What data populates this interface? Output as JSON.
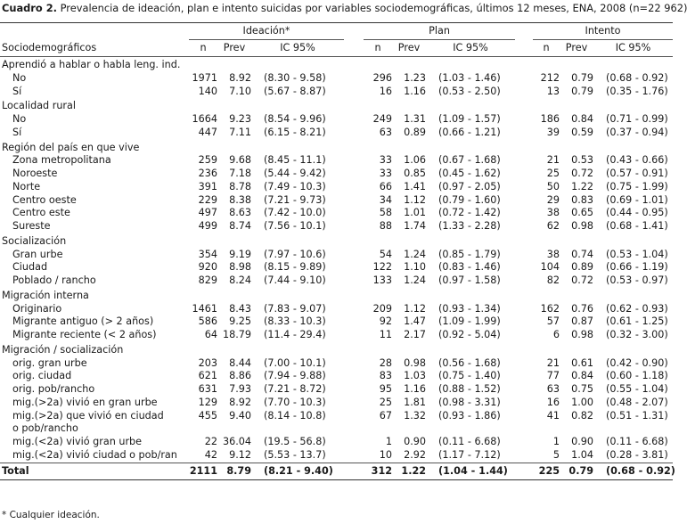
{
  "caption": {
    "label": "Cuadro 2.",
    "text": "Prevalencia de ideación, plan e intento suicidas por variables sociodemográficas, últimos 12 meses, ENA, 2008 (n=22 962)"
  },
  "header": {
    "groups": [
      "Ideación*",
      "Plan",
      "Intento"
    ],
    "first_column": "Sociodemográficos",
    "columns": [
      "n",
      "Prev",
      "IC 95%"
    ]
  },
  "sections": [
    {
      "title": "Aprendió a hablar o habla leng. ind.",
      "rows": [
        {
          "label": "No",
          "ideacion": [
            "1971",
            "8.92",
            "(8.30 - 9.58)"
          ],
          "plan": [
            "296",
            "1.23",
            "(1.03 - 1.46)"
          ],
          "intento": [
            "212",
            "0.79",
            "(0.68 - 0.92)"
          ]
        },
        {
          "label": "Sí",
          "ideacion": [
            "140",
            "7.10",
            "(5.67 - 8.87)"
          ],
          "plan": [
            "16",
            "1.16",
            "(0.53 - 2.50)"
          ],
          "intento": [
            "13",
            "0.79",
            "(0.35 - 1.76)"
          ]
        }
      ]
    },
    {
      "title": "Localidad rural",
      "rows": [
        {
          "label": "No",
          "ideacion": [
            "1664",
            "9.23",
            "(8.54 - 9.96)"
          ],
          "plan": [
            "249",
            "1.31",
            "(1.09 - 1.57)"
          ],
          "intento": [
            "186",
            "0.84",
            "(0.71 - 0.99)"
          ]
        },
        {
          "label": "Sí",
          "ideacion": [
            "447",
            "7.11",
            "(6.15 - 8.21)"
          ],
          "plan": [
            "63",
            "0.89",
            "(0.66 - 1.21)"
          ],
          "intento": [
            "39",
            "0.59",
            "(0.37 - 0.94)"
          ]
        }
      ]
    },
    {
      "title": "Región del país en que vive",
      "rows": [
        {
          "label": "Zona metropolitana",
          "ideacion": [
            "259",
            "9.68",
            "(8.45 - 11.1)"
          ],
          "plan": [
            "33",
            "1.06",
            "(0.67 - 1.68)"
          ],
          "intento": [
            "21",
            "0.53",
            "(0.43 - 0.66)"
          ]
        },
        {
          "label": "Noroeste",
          "ideacion": [
            "236",
            "7.18",
            "(5.44 - 9.42)"
          ],
          "plan": [
            "33",
            "0.85",
            "(0.45 - 1.62)"
          ],
          "intento": [
            "25",
            "0.72",
            "(0.57 - 0.91)"
          ]
        },
        {
          "label": "Norte",
          "ideacion": [
            "391",
            "8.78",
            "(7.49 - 10.3)"
          ],
          "plan": [
            "66",
            "1.41",
            "(0.97 - 2.05)"
          ],
          "intento": [
            "50",
            "1.22",
            "(0.75 - 1.99)"
          ]
        },
        {
          "label": "Centro oeste",
          "ideacion": [
            "229",
            "8.38",
            "(7.21 - 9.73)"
          ],
          "plan": [
            "34",
            "1.12",
            "(0.79 - 1.60)"
          ],
          "intento": [
            "29",
            "0.83",
            "(0.69 - 1.01)"
          ]
        },
        {
          "label": "Centro este",
          "ideacion": [
            "497",
            "8.63",
            "(7.42 - 10.0)"
          ],
          "plan": [
            "58",
            "1.01",
            "(0.72 - 1.42)"
          ],
          "intento": [
            "38",
            "0.65",
            "(0.44 - 0.95)"
          ]
        },
        {
          "label": "Sureste",
          "ideacion": [
            "499",
            "8.74",
            "(7.56 - 10.1)"
          ],
          "plan": [
            "88",
            "1.74",
            "(1.33 - 2.28)"
          ],
          "intento": [
            "62",
            "0.98",
            "(0.68 - 1.41)"
          ]
        }
      ]
    },
    {
      "title": "Socialización",
      "rows": [
        {
          "label": "Gran urbe",
          "ideacion": [
            "354",
            "9.19",
            "(7.97 - 10.6)"
          ],
          "plan": [
            "54",
            "1.24",
            "(0.85 - 1.79)"
          ],
          "intento": [
            "38",
            "0.74",
            "(0.53 - 1.04)"
          ]
        },
        {
          "label": "Ciudad",
          "ideacion": [
            "920",
            "8.98",
            "(8.15 - 9.89)"
          ],
          "plan": [
            "122",
            "1.10",
            "(0.83 - 1.46)"
          ],
          "intento": [
            "104",
            "0.89",
            "(0.66 - 1.19)"
          ]
        },
        {
          "label": "Poblado / rancho",
          "ideacion": [
            "829",
            "8.24",
            "(7.44 - 9.10)"
          ],
          "plan": [
            "133",
            "1.24",
            "(0.97 - 1.58)"
          ],
          "intento": [
            "82",
            "0.72",
            "(0.53 - 0.97)"
          ]
        }
      ]
    },
    {
      "title": "Migración interna",
      "rows": [
        {
          "label": "Originario",
          "ideacion": [
            "1461",
            "8.43",
            "(7.83 - 9.07)"
          ],
          "plan": [
            "209",
            "1.12",
            "(0.93 - 1.34)"
          ],
          "intento": [
            "162",
            "0.76",
            "(0.62 - 0.93)"
          ]
        },
        {
          "label": "Migrante antiguo (> 2 años)",
          "ideacion": [
            "586",
            "9.25",
            "(8.33 - 10.3)"
          ],
          "plan": [
            "92",
            "1.47",
            "(1.09 - 1.99)"
          ],
          "intento": [
            "57",
            "0.87",
            "(0.61 - 1.25)"
          ]
        },
        {
          "label": "Migrante reciente (< 2 años)",
          "ideacion": [
            "64",
            "18.79",
            "(11.4 - 29.4)"
          ],
          "plan": [
            "11",
            "2.17",
            "(0.92 - 5.04)"
          ],
          "intento": [
            "6",
            "0.98",
            "(0.32 - 3.00)"
          ]
        }
      ]
    },
    {
      "title": "Migración / socialización",
      "rows": [
        {
          "label": "orig. gran urbe",
          "ideacion": [
            "203",
            "8.44",
            "(7.00 - 10.1)"
          ],
          "plan": [
            "28",
            "0.98",
            "(0.56 - 1.68)"
          ],
          "intento": [
            "21",
            "0.61",
            "(0.42 - 0.90)"
          ]
        },
        {
          "label": "orig. ciudad",
          "ideacion": [
            "621",
            "8.86",
            "(7.94 - 9.88)"
          ],
          "plan": [
            "83",
            "1.03",
            "(0.75 - 1.40)"
          ],
          "intento": [
            "77",
            "0.84",
            "(0.60 - 1.18)"
          ]
        },
        {
          "label": "orig. pob/rancho",
          "ideacion": [
            "631",
            "7.93",
            "(7.21 - 8.72)"
          ],
          "plan": [
            "95",
            "1.16",
            "(0.88 - 1.52)"
          ],
          "intento": [
            "63",
            "0.75",
            "(0.55 - 1.04)"
          ]
        },
        {
          "label": "mig.(>2a) vivió en gran urbe",
          "ideacion": [
            "129",
            "8.92",
            "(7.70 - 10.3)"
          ],
          "plan": [
            "25",
            "1.81",
            "(0.98 - 3.31)"
          ],
          "intento": [
            "16",
            "1.00",
            "(0.48 - 2.07)"
          ]
        },
        {
          "label": "mig.(>2a) que vivió en ciudad",
          "ideacion": [
            "455",
            "9.40",
            "(8.14 - 10.8)"
          ],
          "plan": [
            "67",
            "1.32",
            "(0.93 - 1.86)"
          ],
          "intento": [
            "41",
            "0.82",
            "(0.51 - 1.31)"
          ]
        },
        {
          "label": "o pob/rancho",
          "ideacion": [
            "",
            "",
            ""
          ],
          "plan": [
            "",
            "",
            ""
          ],
          "intento": [
            "",
            "",
            ""
          ]
        },
        {
          "label": "mig.(<2a) vivió gran urbe",
          "ideacion": [
            "22",
            "36.04",
            "(19.5 - 56.8)"
          ],
          "plan": [
            "1",
            "0.90",
            "(0.11 - 6.68)"
          ],
          "intento": [
            "1",
            "0.90",
            "(0.11 - 6.68)"
          ]
        },
        {
          "label": "mig.(<2a) vivió ciudad o pob/ran",
          "ideacion": [
            "42",
            "9.12",
            "(5.53 - 13.7)"
          ],
          "plan": [
            "10",
            "2.92",
            "(1.17 - 7.12)"
          ],
          "intento": [
            "5",
            "1.04",
            "(0.28 - 3.81)"
          ]
        }
      ]
    }
  ],
  "total": {
    "label": "Total",
    "ideacion": [
      "2111",
      "8.79",
      "(8.21 - 9.40)"
    ],
    "plan": [
      "312",
      "1.22",
      "(1.04 - 1.44)"
    ],
    "intento": [
      "225",
      "0.79",
      "(0.68 - 0.92)"
    ]
  },
  "footnote": "* Cualquier ideación."
}
